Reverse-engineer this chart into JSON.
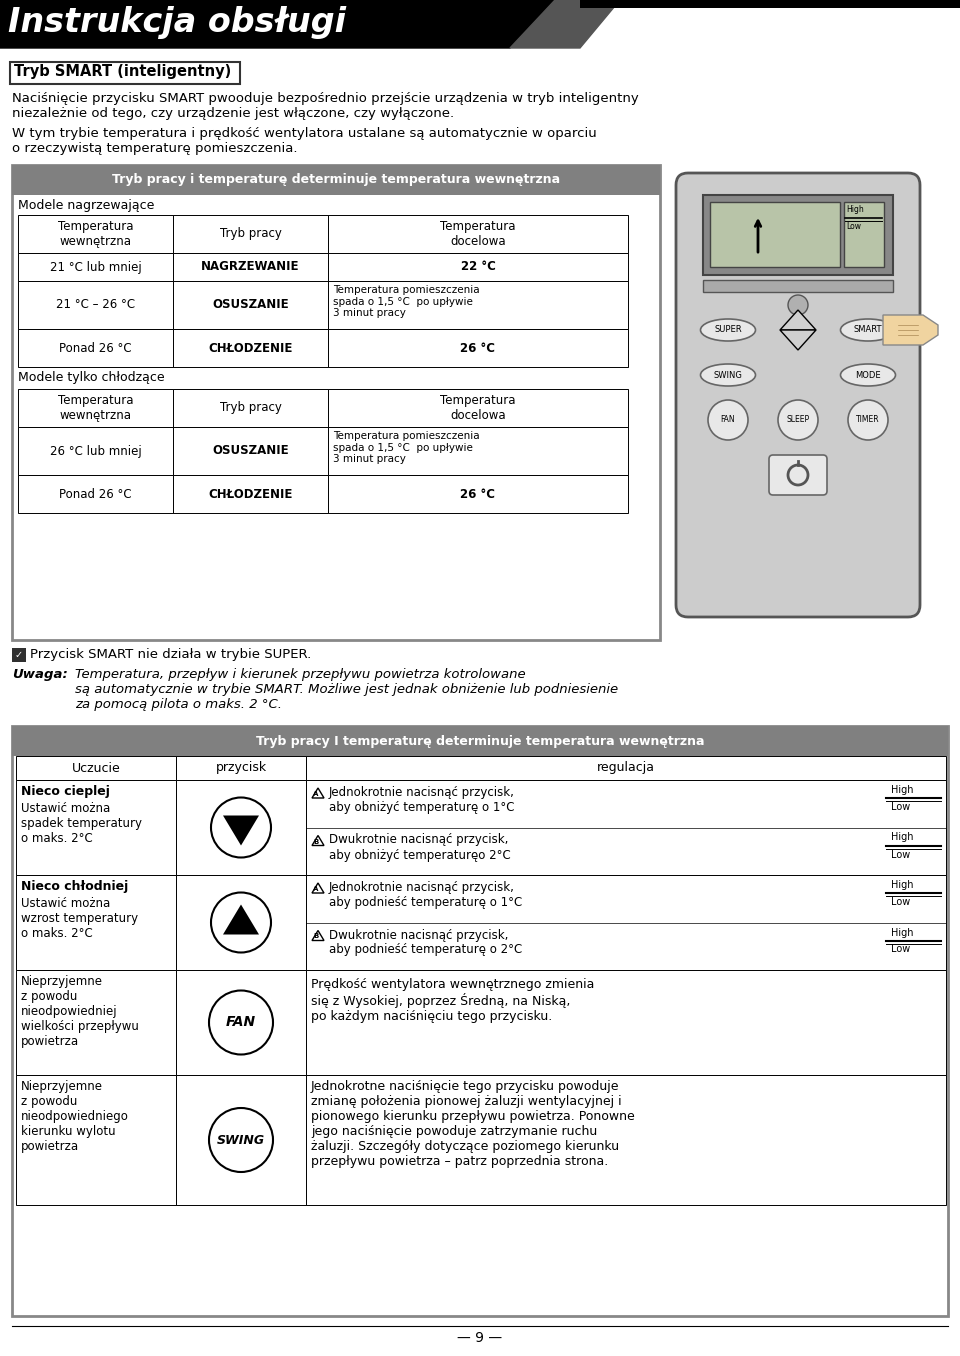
{
  "title": "Instrukcja obsługi",
  "section_title": "Tryb SMART (inteligentny)",
  "p1": "Naciśnięcie przycisku SMART pwooduje bezpośrednio przejście urządzenia w tryb inteligentny\nniezależnie od tego, czy urządzenie jest włączone, czy wyłączone.",
  "p2": "W tym trybie temperatura i prędkość wentylatora ustalane są automatycznie w oparciu\no rzeczywistą temperaturę pomieszczenia.",
  "t1_hdr": "Tryb pracy i temperaturę determinuje temperatura wewnętrzna",
  "t1_s1": "Modele nagrzewające",
  "t1_s2": "Modele tylko chłodzące",
  "col_hdr": [
    "Temperatura\nwewnętrzna",
    "Tryb pracy",
    "Temperatura\ndocelowa"
  ],
  "h_rows": [
    [
      "21 °C lub mniej",
      "NAGRZEWANIE",
      "22 °C"
    ],
    [
      "21 °C – 26 °C",
      "OSUSZANIE",
      "Temperatura pomieszczenia\nspada o 1,5 °C  po upływie\n3 minut pracy"
    ],
    [
      "Ponad 26 °C",
      "CHŁODZENIE",
      "26 °C"
    ]
  ],
  "c_rows": [
    [
      "26 °C lub mniej",
      "OSUSZANIE",
      "Temperatura pomieszczenia\nspada o 1,5 °C  po upływie\n3 minut pracy"
    ],
    [
      "Ponad 26 °C",
      "CHŁODZENIE",
      "26 °C"
    ]
  ],
  "note1": "Przycisk SMART nie działa w trybie SUPER.",
  "note2": "Temperatura, przepływ i kierunek przepływu powietrza kotrolowane\nsą automatycznie w trybie SMART. Możliwe jest jednak obniżenie lub podniesienie\nza pomocą pilota o maks. 2 °C.",
  "t2_hdr": "Tryb pracy I temperaturę determinuje temperatura wewnętrzna",
  "t2_col_hdr": [
    "Uczucie",
    "przycisk",
    "regulacja"
  ],
  "r1_uczucie_b": "Nieco cieplej",
  "r1_uczucie": "Ustawić można\nspadek temperatury\no maks. 2°C",
  "r1_reg1": "Jednokrotnie nacisnąć przycisk,\naby obniżyć temperaturę o 1°C",
  "r1_reg2": "Dwukrotnie nacisnąć przycisk,\naby obniżyć temperaturęo 2°C",
  "r2_uczucie_b": "Nieco chłodniej",
  "r2_uczucie": "Ustawić można\nwzrost temperatury\no maks. 2°C",
  "r2_reg1": "Jednokrotnie nacisnąć przycisk,\naby podnieść temperaturę o 1°C",
  "r2_reg2": "Dwukrotnie nacisnąć przycisk,\naby podnieść temperaturę o 2°C",
  "r3_uczucie": "Nieprzyjemne\nz powodu\nnieodpowiedniej\nwielkości przepływu\npowietrza",
  "r3_reg": "Prędkość wentylatora wewnętrznego zmienia\nsię z Wysokiej, poprzez Średną, na Niską,\npo każdym naciśnięciu tego przycisku.",
  "r4_uczucie": "Nieprzyjemne\nz powodu\nnieodpowiedniego\nkierunku wylotu\npowietrza",
  "r4_reg": "Jednokrotne naciśnięcie tego przycisku powoduje\nzmianę położenia pionowej żaluzji wentylacyjnej i\npionowego kierunku przepływu powietrza. Ponowne\njego naciśnięcie powoduje zatrzymanie ruchu\nżaluzji. Szczegóły dotyczące poziomego kierunku\nprzepływu powietrza – patrz poprzednia strona.",
  "page_num": "9",
  "gray_hdr": "#808080",
  "light_gray_outer": "#aaaaaa",
  "white": "#ffffff",
  "black": "#000000"
}
